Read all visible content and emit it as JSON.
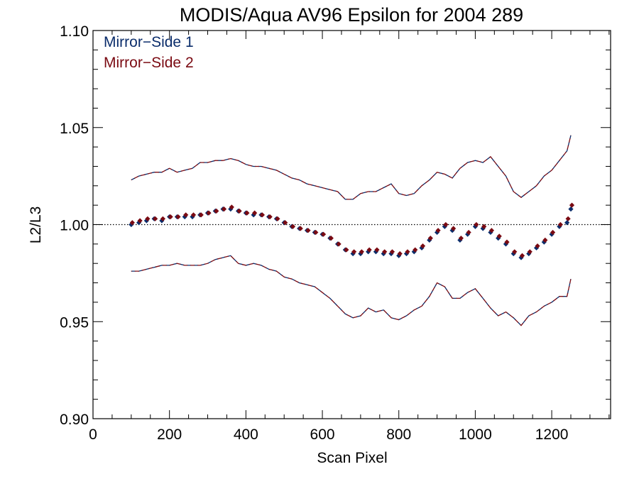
{
  "chart_data": {
    "type": "scatter",
    "title": "MODIS/Aqua AV96 Epsilon for 2004 289",
    "xlabel": "Scan Pixel",
    "ylabel": "L2/L3",
    "xlim": [
      0,
      1354
    ],
    "ylim": [
      0.9,
      1.1
    ],
    "x_ticks": [
      0,
      200,
      400,
      600,
      800,
      1000,
      1200
    ],
    "x_tick_labels": [
      "0",
      "200",
      "400",
      "600",
      "800",
      "1000",
      "1200"
    ],
    "y_ticks": [
      0.9,
      0.95,
      1.0,
      1.05,
      1.1
    ],
    "y_tick_labels": [
      "0.90",
      "0.95",
      "1.00",
      "1.05",
      "1.10"
    ],
    "reference_line": 1.0,
    "legend_position": "top-left",
    "series": [
      {
        "name": "Mirror−Side 1",
        "color": "#0b2d6b",
        "x": [
          100,
          120,
          140,
          160,
          180,
          200,
          220,
          240,
          260,
          280,
          300,
          320,
          340,
          360,
          380,
          400,
          420,
          440,
          460,
          480,
          500,
          520,
          540,
          560,
          580,
          600,
          620,
          640,
          660,
          680,
          700,
          720,
          740,
          760,
          780,
          800,
          820,
          840,
          860,
          880,
          900,
          920,
          940,
          960,
          980,
          1000,
          1020,
          1040,
          1060,
          1080,
          1100,
          1120,
          1140,
          1160,
          1180,
          1200,
          1220,
          1240,
          1250
        ],
        "values": [
          1.0,
          1.001,
          1.002,
          1.003,
          1.002,
          1.004,
          1.004,
          1.004,
          1.004,
          1.005,
          1.006,
          1.007,
          1.008,
          1.008,
          1.007,
          1.006,
          1.005,
          1.005,
          1.004,
          1.003,
          1.001,
          0.999,
          0.998,
          0.997,
          0.996,
          0.995,
          0.993,
          0.99,
          0.987,
          0.985,
          0.985,
          0.986,
          0.986,
          0.985,
          0.985,
          0.984,
          0.985,
          0.986,
          0.988,
          0.992,
          0.996,
          0.999,
          0.997,
          0.992,
          0.995,
          0.999,
          0.998,
          0.996,
          0.993,
          0.99,
          0.985,
          0.983,
          0.985,
          0.988,
          0.991,
          0.995,
          0.999,
          1.001,
          1.008
        ]
      },
      {
        "name": "Mirror−Side 2",
        "color": "#7a0a12",
        "x": [
          100,
          120,
          140,
          160,
          180,
          200,
          220,
          240,
          260,
          280,
          300,
          320,
          340,
          360,
          380,
          400,
          420,
          440,
          460,
          480,
          500,
          520,
          540,
          560,
          580,
          600,
          620,
          640,
          660,
          680,
          700,
          720,
          740,
          760,
          780,
          800,
          820,
          840,
          860,
          880,
          900,
          920,
          940,
          960,
          980,
          1000,
          1020,
          1040,
          1060,
          1080,
          1100,
          1120,
          1140,
          1160,
          1180,
          1200,
          1220,
          1240,
          1250
        ],
        "values": [
          1.001,
          1.002,
          1.003,
          1.003,
          1.003,
          1.004,
          1.004,
          1.005,
          1.005,
          1.005,
          1.006,
          1.007,
          1.008,
          1.009,
          1.007,
          1.006,
          1.006,
          1.005,
          1.004,
          1.003,
          1.001,
          0.999,
          0.998,
          0.997,
          0.996,
          0.995,
          0.993,
          0.99,
          0.987,
          0.986,
          0.986,
          0.987,
          0.987,
          0.986,
          0.986,
          0.985,
          0.986,
          0.987,
          0.989,
          0.993,
          0.997,
          1.0,
          0.998,
          0.993,
          0.996,
          1.0,
          0.999,
          0.997,
          0.994,
          0.991,
          0.986,
          0.984,
          0.986,
          0.989,
          0.992,
          0.996,
          1.0,
          1.003,
          1.01
        ]
      }
    ],
    "bounds": {
      "x": [
        100,
        120,
        140,
        160,
        180,
        200,
        220,
        240,
        260,
        280,
        300,
        320,
        340,
        360,
        380,
        400,
        420,
        440,
        460,
        480,
        500,
        520,
        540,
        560,
        580,
        600,
        620,
        640,
        660,
        680,
        700,
        720,
        740,
        760,
        780,
        800,
        820,
        840,
        860,
        880,
        900,
        920,
        940,
        960,
        980,
        1000,
        1020,
        1040,
        1060,
        1080,
        1100,
        1120,
        1140,
        1160,
        1180,
        1200,
        1220,
        1240,
        1250
      ],
      "upper": [
        1.023,
        1.025,
        1.026,
        1.027,
        1.027,
        1.029,
        1.027,
        1.028,
        1.029,
        1.032,
        1.032,
        1.033,
        1.033,
        1.034,
        1.033,
        1.031,
        1.03,
        1.03,
        1.029,
        1.028,
        1.026,
        1.024,
        1.023,
        1.021,
        1.02,
        1.019,
        1.018,
        1.017,
        1.013,
        1.013,
        1.016,
        1.017,
        1.017,
        1.019,
        1.021,
        1.016,
        1.015,
        1.016,
        1.02,
        1.023,
        1.027,
        1.026,
        1.024,
        1.029,
        1.032,
        1.033,
        1.032,
        1.035,
        1.03,
        1.025,
        1.017,
        1.014,
        1.017,
        1.02,
        1.025,
        1.028,
        1.033,
        1.038,
        1.046
      ],
      "lower": [
        0.976,
        0.976,
        0.977,
        0.978,
        0.979,
        0.979,
        0.98,
        0.979,
        0.979,
        0.979,
        0.98,
        0.982,
        0.983,
        0.984,
        0.98,
        0.979,
        0.98,
        0.979,
        0.977,
        0.976,
        0.973,
        0.972,
        0.97,
        0.969,
        0.968,
        0.965,
        0.962,
        0.958,
        0.954,
        0.952,
        0.953,
        0.957,
        0.955,
        0.956,
        0.952,
        0.951,
        0.953,
        0.956,
        0.958,
        0.963,
        0.97,
        0.968,
        0.962,
        0.962,
        0.965,
        0.967,
        0.962,
        0.957,
        0.953,
        0.955,
        0.952,
        0.948,
        0.953,
        0.955,
        0.958,
        0.96,
        0.963,
        0.963,
        0.972
      ]
    }
  }
}
